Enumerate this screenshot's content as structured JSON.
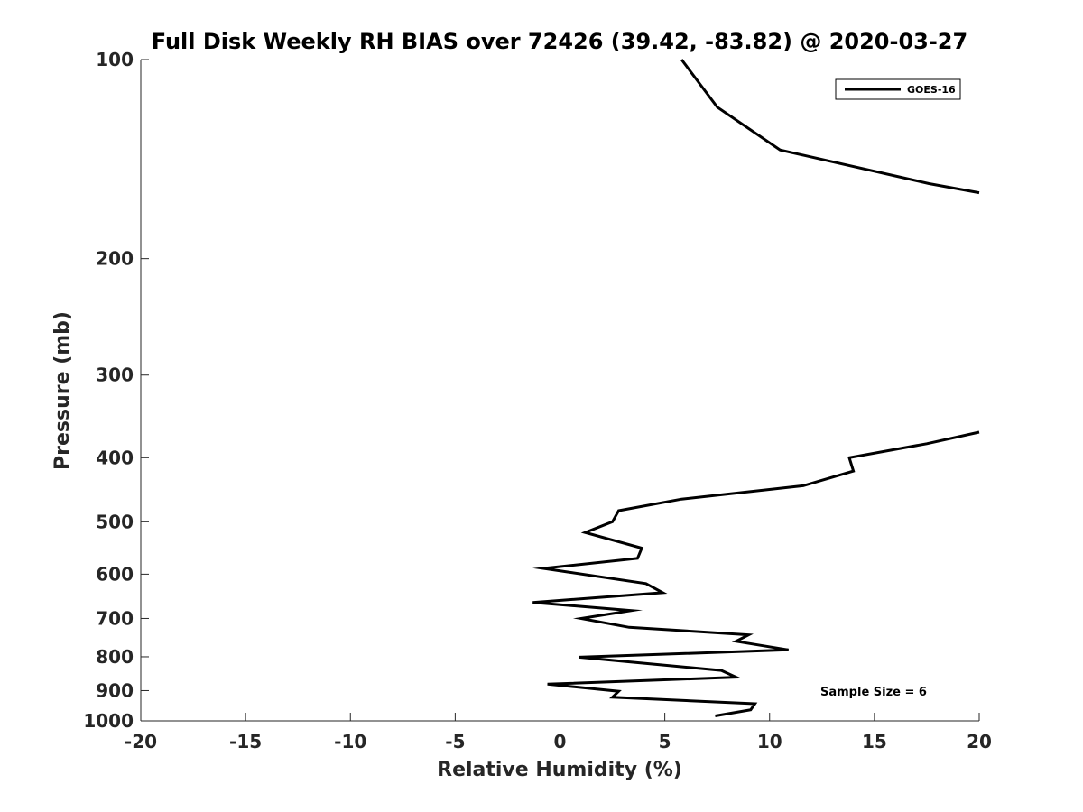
{
  "chart_data": {
    "type": "line",
    "title": "Full Disk Weekly RH BIAS over 72426 (39.42, -83.82) @ 2020-03-27",
    "xlabel": "Relative Humidity (%)",
    "ylabel": "Pressure (mb)",
    "xlim": [
      -20,
      20
    ],
    "ylim": [
      100,
      1000
    ],
    "y_scale": "log",
    "y_reversed": true,
    "x_ticks": [
      -20,
      -15,
      -10,
      -5,
      0,
      5,
      10,
      15,
      20
    ],
    "y_ticks": [
      100,
      200,
      300,
      400,
      500,
      600,
      700,
      800,
      900,
      1000
    ],
    "grid": false,
    "legend_position": "top-right",
    "annotation": "Sample Size = 6",
    "series": [
      {
        "name": "GOES-16",
        "color": "#000000",
        "segments": [
          [
            {
              "x": 5.8,
              "y": 100
            },
            {
              "x": 7.5,
              "y": 118
            },
            {
              "x": 10.5,
              "y": 137
            },
            {
              "x": 17.6,
              "y": 154
            },
            {
              "x": 20.0,
              "y": 159
            }
          ],
          [
            {
              "x": 20.0,
              "y": 366
            },
            {
              "x": 17.5,
              "y": 381
            },
            {
              "x": 13.8,
              "y": 400
            },
            {
              "x": 14.0,
              "y": 419
            },
            {
              "x": 11.6,
              "y": 441
            },
            {
              "x": 5.8,
              "y": 462
            },
            {
              "x": 2.8,
              "y": 481
            },
            {
              "x": 2.5,
              "y": 500
            },
            {
              "x": 1.2,
              "y": 519
            },
            {
              "x": 3.9,
              "y": 548
            },
            {
              "x": 3.7,
              "y": 568
            },
            {
              "x": -0.8,
              "y": 588
            },
            {
              "x": 4.1,
              "y": 620
            },
            {
              "x": 4.9,
              "y": 640
            },
            {
              "x": -1.3,
              "y": 662
            },
            {
              "x": 3.4,
              "y": 681
            },
            {
              "x": 1.0,
              "y": 700
            },
            {
              "x": 3.3,
              "y": 722
            },
            {
              "x": 9.0,
              "y": 741
            },
            {
              "x": 8.4,
              "y": 758
            },
            {
              "x": 10.9,
              "y": 781
            },
            {
              "x": 0.9,
              "y": 801
            },
            {
              "x": 7.7,
              "y": 839
            },
            {
              "x": 8.4,
              "y": 859
            },
            {
              "x": -0.6,
              "y": 880
            },
            {
              "x": 2.8,
              "y": 902
            },
            {
              "x": 2.5,
              "y": 921
            },
            {
              "x": 9.3,
              "y": 942
            },
            {
              "x": 9.1,
              "y": 962
            },
            {
              "x": 7.4,
              "y": 983
            }
          ]
        ]
      }
    ]
  }
}
